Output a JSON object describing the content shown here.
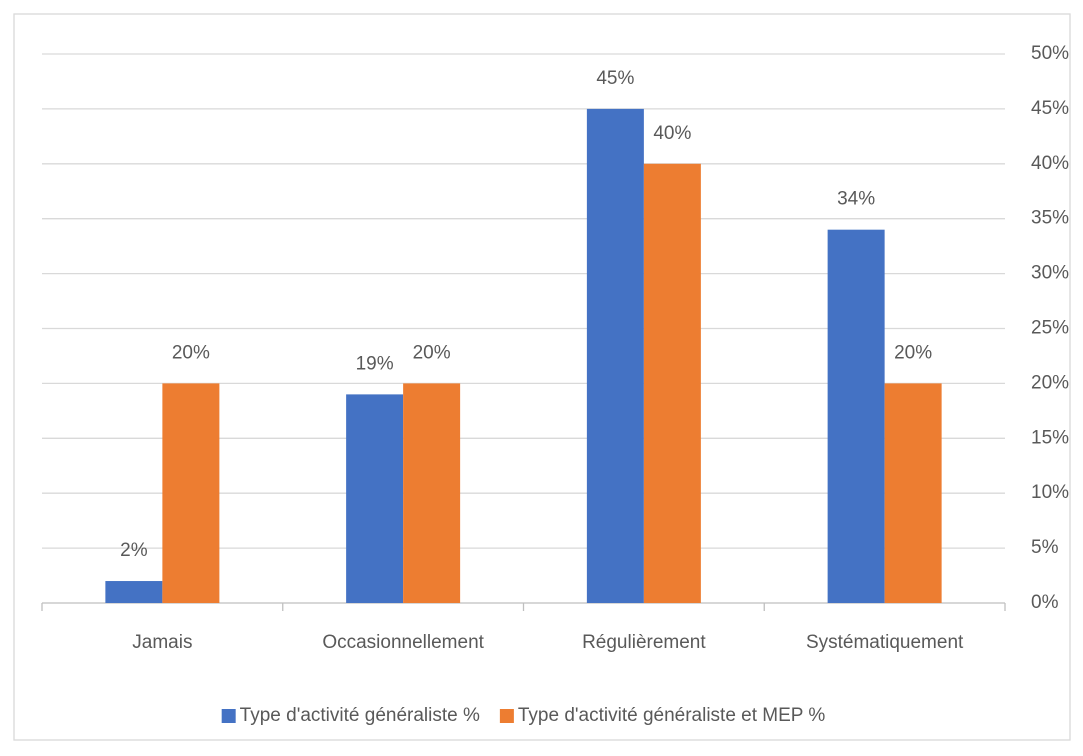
{
  "chart_data": {
    "type": "bar",
    "categories": [
      "Jamais",
      "Occasionnellement",
      "Régulièrement",
      "Systématiquement"
    ],
    "series": [
      {
        "name": "Type d'activité généraliste %",
        "color": "#4472c4",
        "values": [
          2,
          19,
          45,
          34
        ],
        "value_labels": [
          "2%",
          "19%",
          "45%",
          "34%"
        ]
      },
      {
        "name": "Type d'activité généraliste et MEP %",
        "color": "#ed7d31",
        "values": [
          20,
          20,
          40,
          20
        ],
        "value_labels": [
          "20%",
          "20%",
          "40%",
          "20%"
        ]
      }
    ],
    "ylim": [
      0,
      50
    ],
    "yticks": [
      {
        "value": 0,
        "label": "0%"
      },
      {
        "value": 5,
        "label": "5%"
      },
      {
        "value": 10,
        "label": "10%"
      },
      {
        "value": 15,
        "label": "15%"
      },
      {
        "value": 20,
        "label": "20%"
      },
      {
        "value": 25,
        "label": "25%"
      },
      {
        "value": 30,
        "label": "30%"
      },
      {
        "value": 35,
        "label": "35%"
      },
      {
        "value": 40,
        "label": "40%"
      },
      {
        "value": 45,
        "label": "45%"
      },
      {
        "value": 50,
        "label": "50%"
      }
    ],
    "y_axis_side": "right",
    "grid": true,
    "legend": "bottom"
  }
}
